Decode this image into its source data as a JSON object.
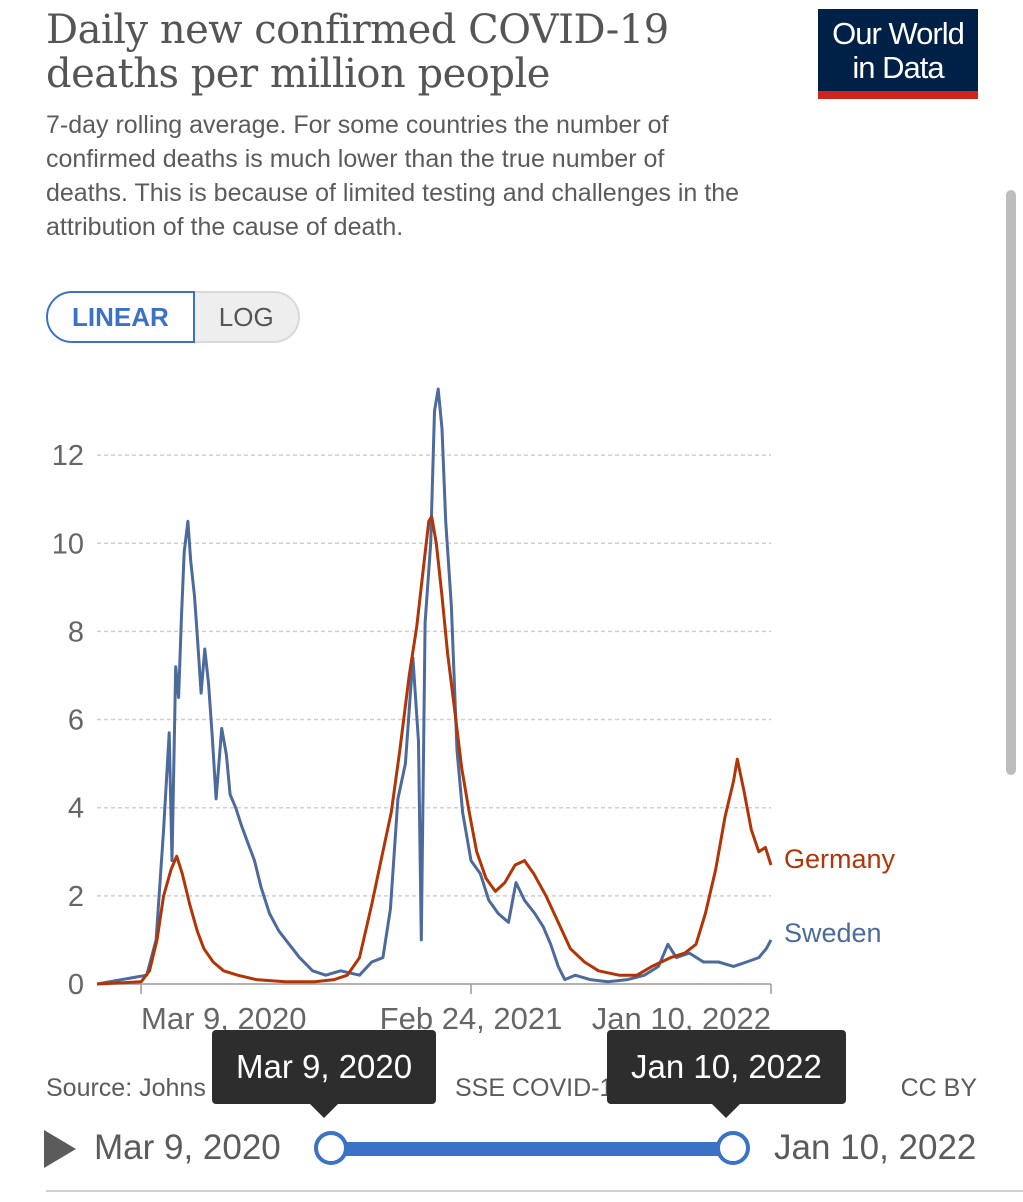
{
  "header": {
    "title": "Daily new confirmed COVID-19 deaths per million people",
    "subtitle": "7-day rolling average. For some countries the number of confirmed deaths is much lower than the true number of deaths. This is because of limited testing and challenges in the attribution of the cause of death.",
    "logo": "Our World in Data"
  },
  "scale_toggle": {
    "linear": "LINEAR",
    "log": "LOG",
    "selected": "LINEAR"
  },
  "chart_data": {
    "type": "line",
    "x_domain": [
      "2020-01-22",
      "2022-01-10"
    ],
    "ylim": [
      0,
      13.5
    ],
    "yticks": [
      0,
      2,
      4,
      6,
      8,
      10,
      12
    ],
    "ytick_labels": [
      "0",
      "2",
      "4",
      "6",
      "8",
      "10",
      "12"
    ],
    "xticks": [
      "2020-03-09",
      "2021-02-24",
      "2022-01-10"
    ],
    "xtick_labels": [
      "Mar 9, 2020",
      "Feb 24, 2021",
      "Jan 10, 2022"
    ],
    "grid": "horizontal dashed",
    "legend": "labels at line ends, right",
    "series": [
      {
        "name": "Sweden",
        "color": "#4c6a9c",
        "points": [
          [
            "2020-01-22",
            0
          ],
          [
            "2020-03-15",
            0.2
          ],
          [
            "2020-03-25",
            1
          ],
          [
            "2020-04-02",
            3.5
          ],
          [
            "2020-04-08",
            5.7
          ],
          [
            "2020-04-11",
            2.8
          ],
          [
            "2020-04-15",
            7.2
          ],
          [
            "2020-04-18",
            6.5
          ],
          [
            "2020-04-21",
            8.3
          ],
          [
            "2020-04-24",
            9.8
          ],
          [
            "2020-04-28",
            10.5
          ],
          [
            "2020-05-01",
            9.6
          ],
          [
            "2020-05-05",
            8.8
          ],
          [
            "2020-05-08",
            7.9
          ],
          [
            "2020-05-12",
            6.6
          ],
          [
            "2020-05-16",
            7.6
          ],
          [
            "2020-05-20",
            6.8
          ],
          [
            "2020-05-24",
            5.6
          ],
          [
            "2020-05-28",
            4.2
          ],
          [
            "2020-06-03",
            5.8
          ],
          [
            "2020-06-08",
            5.2
          ],
          [
            "2020-06-12",
            4.3
          ],
          [
            "2020-06-18",
            4.0
          ],
          [
            "2020-06-24",
            3.6
          ],
          [
            "2020-07-01",
            3.2
          ],
          [
            "2020-07-08",
            2.8
          ],
          [
            "2020-07-15",
            2.2
          ],
          [
            "2020-07-24",
            1.6
          ],
          [
            "2020-08-03",
            1.2
          ],
          [
            "2020-08-14",
            0.9
          ],
          [
            "2020-08-25",
            0.6
          ],
          [
            "2020-09-08",
            0.3
          ],
          [
            "2020-09-22",
            0.2
          ],
          [
            "2020-10-08",
            0.3
          ],
          [
            "2020-10-28",
            0.2
          ],
          [
            "2020-11-10",
            0.5
          ],
          [
            "2020-11-22",
            0.6
          ],
          [
            "2020-11-30",
            1.7
          ],
          [
            "2020-12-08",
            4.2
          ],
          [
            "2020-12-16",
            5.0
          ],
          [
            "2020-12-24",
            7.4
          ],
          [
            "2020-12-30",
            5.5
          ],
          [
            "2021-01-02",
            1.0
          ],
          [
            "2021-01-06",
            8.2
          ],
          [
            "2021-01-12",
            10.0
          ],
          [
            "2021-01-16",
            13.0
          ],
          [
            "2021-01-20",
            13.5
          ],
          [
            "2021-01-24",
            12.6
          ],
          [
            "2021-01-28",
            10.5
          ],
          [
            "2021-02-03",
            8.6
          ],
          [
            "2021-02-09",
            5.3
          ],
          [
            "2021-02-15",
            3.9
          ],
          [
            "2021-02-24",
            2.8
          ],
          [
            "2021-03-06",
            2.5
          ],
          [
            "2021-03-15",
            1.9
          ],
          [
            "2021-03-25",
            1.6
          ],
          [
            "2021-04-05",
            1.4
          ],
          [
            "2021-04-13",
            2.3
          ],
          [
            "2021-04-22",
            1.9
          ],
          [
            "2021-05-03",
            1.6
          ],
          [
            "2021-05-12",
            1.3
          ],
          [
            "2021-05-20",
            0.9
          ],
          [
            "2021-05-28",
            0.4
          ],
          [
            "2021-06-04",
            0.1
          ],
          [
            "2021-06-15",
            0.2
          ],
          [
            "2021-07-01",
            0.1
          ],
          [
            "2021-07-20",
            0.05
          ],
          [
            "2021-08-10",
            0.1
          ],
          [
            "2021-08-28",
            0.2
          ],
          [
            "2021-09-12",
            0.4
          ],
          [
            "2021-09-22",
            0.9
          ],
          [
            "2021-10-01",
            0.6
          ],
          [
            "2021-10-15",
            0.7
          ],
          [
            "2021-10-30",
            0.5
          ],
          [
            "2021-11-15",
            0.5
          ],
          [
            "2021-12-01",
            0.4
          ],
          [
            "2021-12-15",
            0.5
          ],
          [
            "2021-12-28",
            0.6
          ],
          [
            "2022-01-05",
            0.8
          ],
          [
            "2022-01-10",
            1.0
          ]
        ]
      },
      {
        "name": "Germany",
        "color": "#b13507",
        "points": [
          [
            "2020-01-22",
            0
          ],
          [
            "2020-03-09",
            0.05
          ],
          [
            "2020-03-18",
            0.3
          ],
          [
            "2020-03-26",
            1.0
          ],
          [
            "2020-04-02",
            2.0
          ],
          [
            "2020-04-10",
            2.6
          ],
          [
            "2020-04-16",
            2.9
          ],
          [
            "2020-04-22",
            2.5
          ],
          [
            "2020-04-30",
            1.8
          ],
          [
            "2020-05-08",
            1.2
          ],
          [
            "2020-05-15",
            0.8
          ],
          [
            "2020-05-25",
            0.5
          ],
          [
            "2020-06-05",
            0.3
          ],
          [
            "2020-06-20",
            0.2
          ],
          [
            "2020-07-10",
            0.1
          ],
          [
            "2020-08-10",
            0.05
          ],
          [
            "2020-09-10",
            0.05
          ],
          [
            "2020-10-01",
            0.1
          ],
          [
            "2020-10-15",
            0.2
          ],
          [
            "2020-10-28",
            0.6
          ],
          [
            "2020-11-10",
            1.8
          ],
          [
            "2020-11-20",
            2.8
          ],
          [
            "2020-12-01",
            3.9
          ],
          [
            "2020-12-10",
            5.3
          ],
          [
            "2020-12-20",
            7.0
          ],
          [
            "2020-12-28",
            8.1
          ],
          [
            "2021-01-05",
            9.6
          ],
          [
            "2021-01-10",
            10.5
          ],
          [
            "2021-01-13",
            10.6
          ],
          [
            "2021-01-18",
            10.0
          ],
          [
            "2021-01-24",
            8.8
          ],
          [
            "2021-01-30",
            7.5
          ],
          [
            "2021-02-06",
            6.3
          ],
          [
            "2021-02-14",
            4.9
          ],
          [
            "2021-02-22",
            3.9
          ],
          [
            "2021-03-02",
            3.0
          ],
          [
            "2021-03-12",
            2.4
          ],
          [
            "2021-03-22",
            2.1
          ],
          [
            "2021-04-01",
            2.3
          ],
          [
            "2021-04-12",
            2.7
          ],
          [
            "2021-04-22",
            2.8
          ],
          [
            "2021-05-02",
            2.5
          ],
          [
            "2021-05-15",
            2.0
          ],
          [
            "2021-05-28",
            1.4
          ],
          [
            "2021-06-10",
            0.8
          ],
          [
            "2021-06-25",
            0.5
          ],
          [
            "2021-07-10",
            0.3
          ],
          [
            "2021-08-01",
            0.2
          ],
          [
            "2021-08-20",
            0.2
          ],
          [
            "2021-09-05",
            0.4
          ],
          [
            "2021-09-25",
            0.6
          ],
          [
            "2021-10-10",
            0.7
          ],
          [
            "2021-10-22",
            0.9
          ],
          [
            "2021-11-01",
            1.6
          ],
          [
            "2021-11-12",
            2.6
          ],
          [
            "2021-11-22",
            3.8
          ],
          [
            "2021-12-01",
            4.6
          ],
          [
            "2021-12-05",
            5.1
          ],
          [
            "2021-12-12",
            4.4
          ],
          [
            "2021-12-20",
            3.5
          ],
          [
            "2021-12-28",
            3.0
          ],
          [
            "2022-01-04",
            3.1
          ],
          [
            "2022-01-10",
            2.7
          ]
        ]
      }
    ]
  },
  "footer": {
    "source_left": "Source: Johns",
    "source_mid": "SSE COVID-1",
    "license": "CC BY"
  },
  "timeline": {
    "start_label": "Mar 9, 2020",
    "end_label": "Jan 10, 2022",
    "tooltip_start": "Mar 9, 2020",
    "tooltip_end": "Jan 10, 2022"
  }
}
